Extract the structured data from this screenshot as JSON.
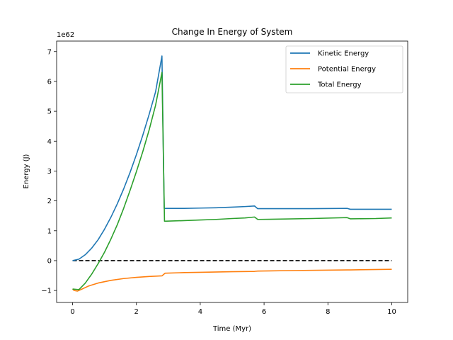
{
  "chart_data": {
    "type": "line",
    "title": "Change In Energy of System",
    "xlabel": "Time (Myr)",
    "ylabel": "Energy (J)",
    "y_offset_label": "1e62",
    "y_scale": 1e+62,
    "xlim": [
      -0.5,
      10.5
    ],
    "ylim": [
      -1.4,
      7.35
    ],
    "x_ticks": [
      0,
      2,
      4,
      6,
      8,
      10
    ],
    "x_tick_labels": [
      "0",
      "2",
      "4",
      "6",
      "8",
      "10"
    ],
    "y_ticks": [
      -1,
      0,
      1,
      2,
      3,
      4,
      5,
      6,
      7
    ],
    "y_tick_labels": [
      "−1",
      "0",
      "1",
      "2",
      "3",
      "4",
      "5",
      "6",
      "7"
    ],
    "grid": false,
    "legend_position": "top-right",
    "series": [
      {
        "name": "Kinetic Energy",
        "color": "#1f77b4",
        "points": [
          [
            0,
            0
          ],
          [
            0.2,
            0.05
          ],
          [
            0.4,
            0.2
          ],
          [
            0.6,
            0.42
          ],
          [
            0.8,
            0.7
          ],
          [
            1.0,
            1.05
          ],
          [
            1.2,
            1.45
          ],
          [
            1.4,
            1.9
          ],
          [
            1.6,
            2.4
          ],
          [
            1.8,
            2.95
          ],
          [
            2.0,
            3.55
          ],
          [
            2.2,
            4.2
          ],
          [
            2.4,
            4.9
          ],
          [
            2.6,
            5.65
          ],
          [
            2.8,
            6.85
          ],
          [
            2.87,
            1.75
          ],
          [
            3.5,
            1.75
          ],
          [
            4.0,
            1.76
          ],
          [
            4.5,
            1.77
          ],
          [
            5.0,
            1.79
          ],
          [
            5.4,
            1.81
          ],
          [
            5.7,
            1.83
          ],
          [
            5.8,
            1.74
          ],
          [
            6.5,
            1.74
          ],
          [
            7.5,
            1.74
          ],
          [
            8.6,
            1.75
          ],
          [
            8.7,
            1.72
          ],
          [
            9.5,
            1.72
          ],
          [
            10.0,
            1.72
          ]
        ]
      },
      {
        "name": "Potential Energy",
        "color": "#ff7f0e",
        "points": [
          [
            0,
            -0.95
          ],
          [
            0.05,
            -1.0
          ],
          [
            0.15,
            -1.02
          ],
          [
            0.3,
            -0.95
          ],
          [
            0.5,
            -0.85
          ],
          [
            0.8,
            -0.75
          ],
          [
            1.2,
            -0.66
          ],
          [
            1.6,
            -0.6
          ],
          [
            2.0,
            -0.56
          ],
          [
            2.4,
            -0.53
          ],
          [
            2.8,
            -0.51
          ],
          [
            2.9,
            -0.42
          ],
          [
            3.5,
            -0.4
          ],
          [
            4.0,
            -0.39
          ],
          [
            5.0,
            -0.37
          ],
          [
            5.7,
            -0.36
          ],
          [
            5.8,
            -0.35
          ],
          [
            7.0,
            -0.33
          ],
          [
            8.6,
            -0.31
          ],
          [
            8.7,
            -0.31
          ],
          [
            10.0,
            -0.29
          ]
        ]
      },
      {
        "name": "Total Energy",
        "color": "#2ca02c",
        "points": [
          [
            0,
            -0.95
          ],
          [
            0.2,
            -0.97
          ],
          [
            0.4,
            -0.75
          ],
          [
            0.6,
            -0.45
          ],
          [
            0.8,
            -0.1
          ],
          [
            1.0,
            0.28
          ],
          [
            1.2,
            0.72
          ],
          [
            1.4,
            1.2
          ],
          [
            1.6,
            1.75
          ],
          [
            1.8,
            2.35
          ],
          [
            2.0,
            2.98
          ],
          [
            2.2,
            3.65
          ],
          [
            2.4,
            4.38
          ],
          [
            2.6,
            5.2
          ],
          [
            2.8,
            6.3
          ],
          [
            2.88,
            1.32
          ],
          [
            3.5,
            1.34
          ],
          [
            4.0,
            1.36
          ],
          [
            4.5,
            1.38
          ],
          [
            5.0,
            1.41
          ],
          [
            5.4,
            1.43
          ],
          [
            5.7,
            1.46
          ],
          [
            5.8,
            1.38
          ],
          [
            6.5,
            1.39
          ],
          [
            7.5,
            1.41
          ],
          [
            8.6,
            1.44
          ],
          [
            8.7,
            1.4
          ],
          [
            9.5,
            1.41
          ],
          [
            10.0,
            1.43
          ]
        ]
      }
    ],
    "reference_line": {
      "y": 0,
      "x_range": [
        0,
        10
      ],
      "style": "dashed",
      "color": "#000000"
    }
  }
}
